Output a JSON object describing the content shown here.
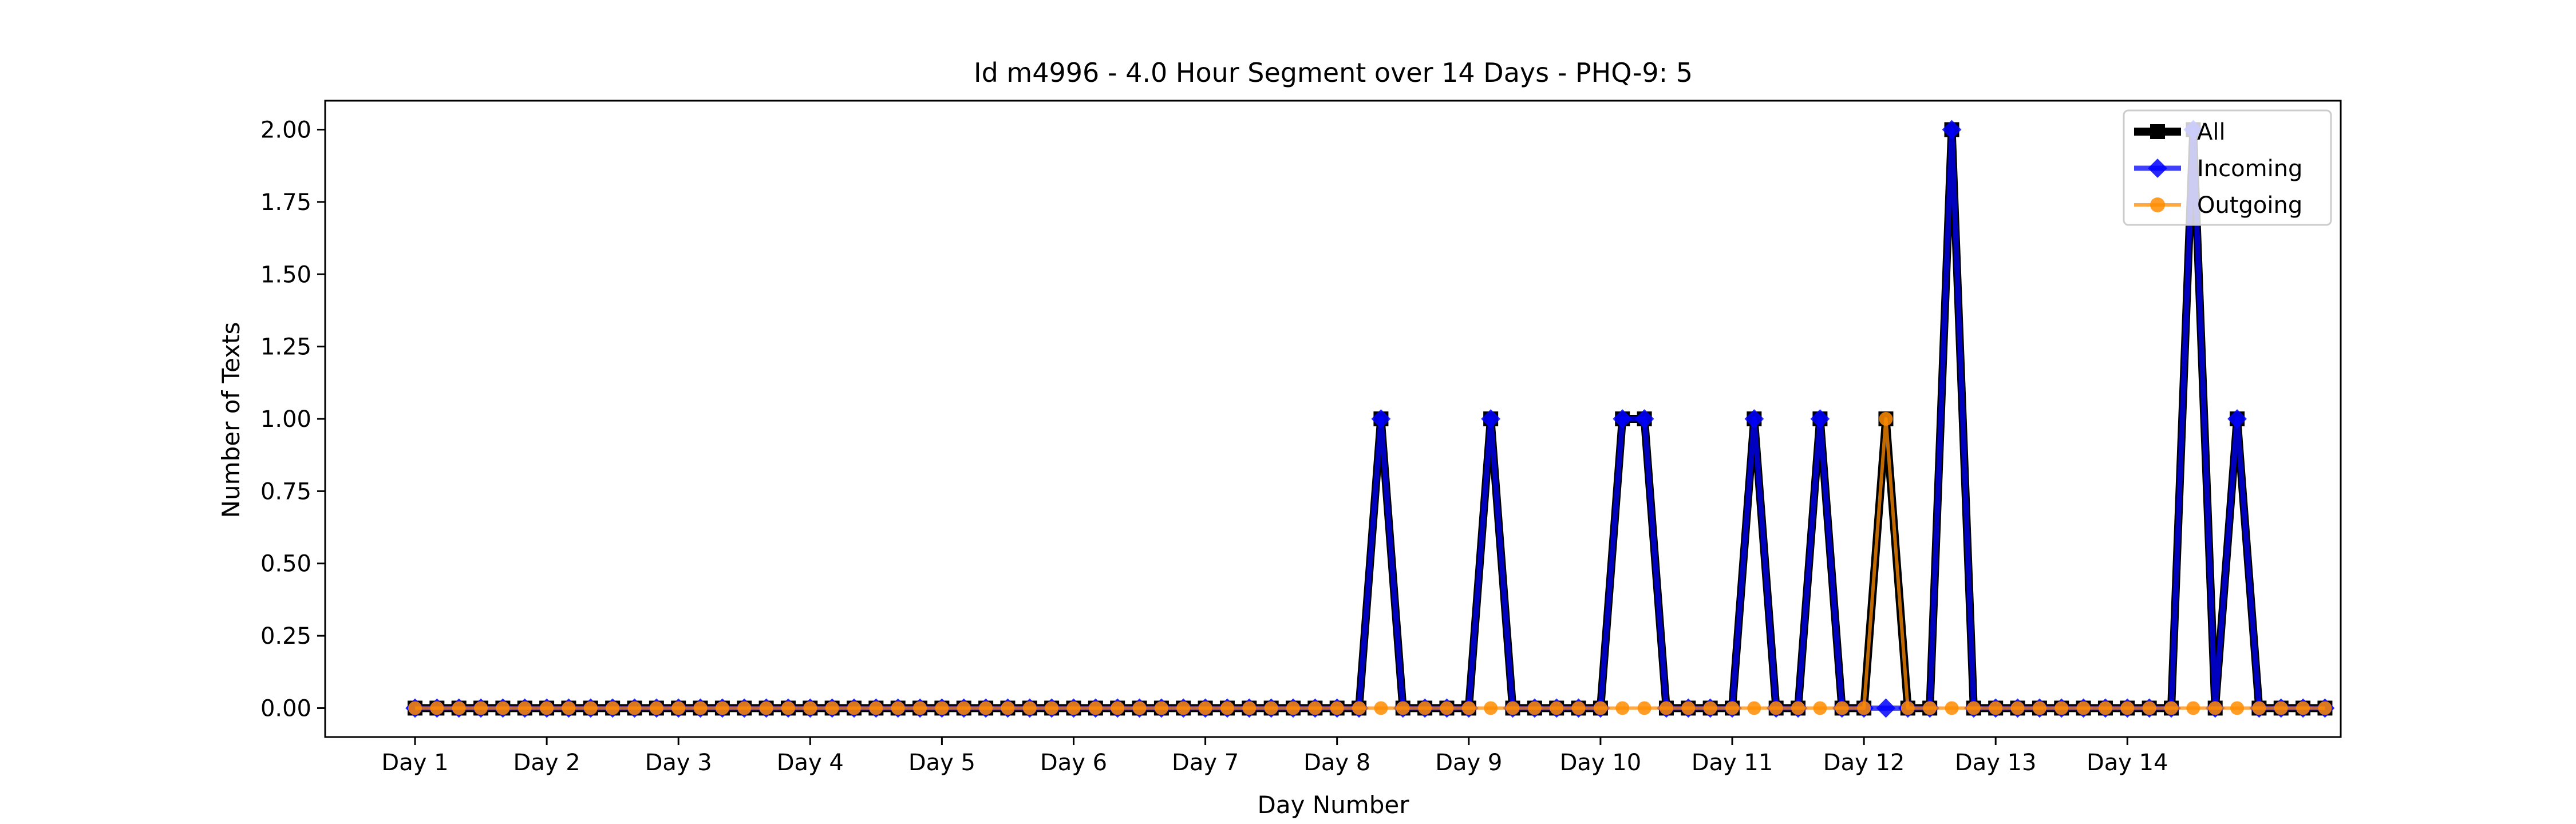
{
  "chart_data": {
    "type": "line",
    "title": "Id m4996 - 4.0 Hour Segment over 14 Days - PHQ-9: 5",
    "xlabel": "Day Number",
    "ylabel": "Number of Texts",
    "xticks": [
      "Day 1",
      "Day 2",
      "Day 3",
      "Day 4",
      "Day 5",
      "Day 6",
      "Day 7",
      "Day 8",
      "Day 9",
      "Day 10",
      "Day 11",
      "Day 12",
      "Day 13",
      "Day 14"
    ],
    "yticks": [
      "0.00",
      "0.25",
      "0.50",
      "0.75",
      "1.00",
      "1.25",
      "1.50",
      "1.75",
      "2.00"
    ],
    "ylim": [
      -0.1,
      2.1
    ],
    "grid": false,
    "legend": "top-right",
    "series": [
      {
        "name": "All",
        "color": "#000000",
        "marker": "square",
        "values": [
          0,
          0,
          0,
          0,
          0,
          0,
          0,
          0,
          0,
          0,
          0,
          0,
          0,
          0,
          0,
          0,
          0,
          0,
          0,
          0,
          0,
          0,
          0,
          0,
          0,
          0,
          0,
          0,
          0,
          0,
          0,
          0,
          0,
          0,
          0,
          0,
          0,
          0,
          0,
          0,
          0,
          0,
          0,
          0,
          1,
          0,
          0,
          0,
          0,
          1,
          0,
          0,
          0,
          0,
          0,
          1,
          1,
          0,
          0,
          0,
          0,
          1,
          0,
          0,
          1,
          0,
          0,
          1,
          0,
          0,
          2,
          0,
          0,
          0,
          0,
          0,
          0,
          0,
          0,
          0,
          0,
          2,
          0,
          1,
          0,
          0,
          0,
          0
        ]
      },
      {
        "name": "Incoming",
        "color": "#0000ff",
        "marker": "diamond",
        "values": [
          0,
          0,
          0,
          0,
          0,
          0,
          0,
          0,
          0,
          0,
          0,
          0,
          0,
          0,
          0,
          0,
          0,
          0,
          0,
          0,
          0,
          0,
          0,
          0,
          0,
          0,
          0,
          0,
          0,
          0,
          0,
          0,
          0,
          0,
          0,
          0,
          0,
          0,
          0,
          0,
          0,
          0,
          0,
          0,
          1,
          0,
          0,
          0,
          0,
          1,
          0,
          0,
          0,
          0,
          0,
          1,
          1,
          0,
          0,
          0,
          0,
          1,
          0,
          0,
          1,
          0,
          0,
          0,
          0,
          0,
          2,
          0,
          0,
          0,
          0,
          0,
          0,
          0,
          0,
          0,
          0,
          2,
          0,
          1,
          0,
          0,
          0,
          0
        ]
      },
      {
        "name": "Outgoing",
        "color": "#ff8c00",
        "marker": "circle",
        "values": [
          0,
          0,
          0,
          0,
          0,
          0,
          0,
          0,
          0,
          0,
          0,
          0,
          0,
          0,
          0,
          0,
          0,
          0,
          0,
          0,
          0,
          0,
          0,
          0,
          0,
          0,
          0,
          0,
          0,
          0,
          0,
          0,
          0,
          0,
          0,
          0,
          0,
          0,
          0,
          0,
          0,
          0,
          0,
          0,
          0,
          0,
          0,
          0,
          0,
          0,
          0,
          0,
          0,
          0,
          0,
          0,
          0,
          0,
          0,
          0,
          0,
          0,
          0,
          0,
          0,
          0,
          0,
          1,
          0,
          0,
          0,
          0,
          0,
          0,
          0,
          0,
          0,
          0,
          0,
          0,
          0,
          0,
          0,
          0,
          0,
          0,
          0,
          0
        ]
      }
    ]
  }
}
